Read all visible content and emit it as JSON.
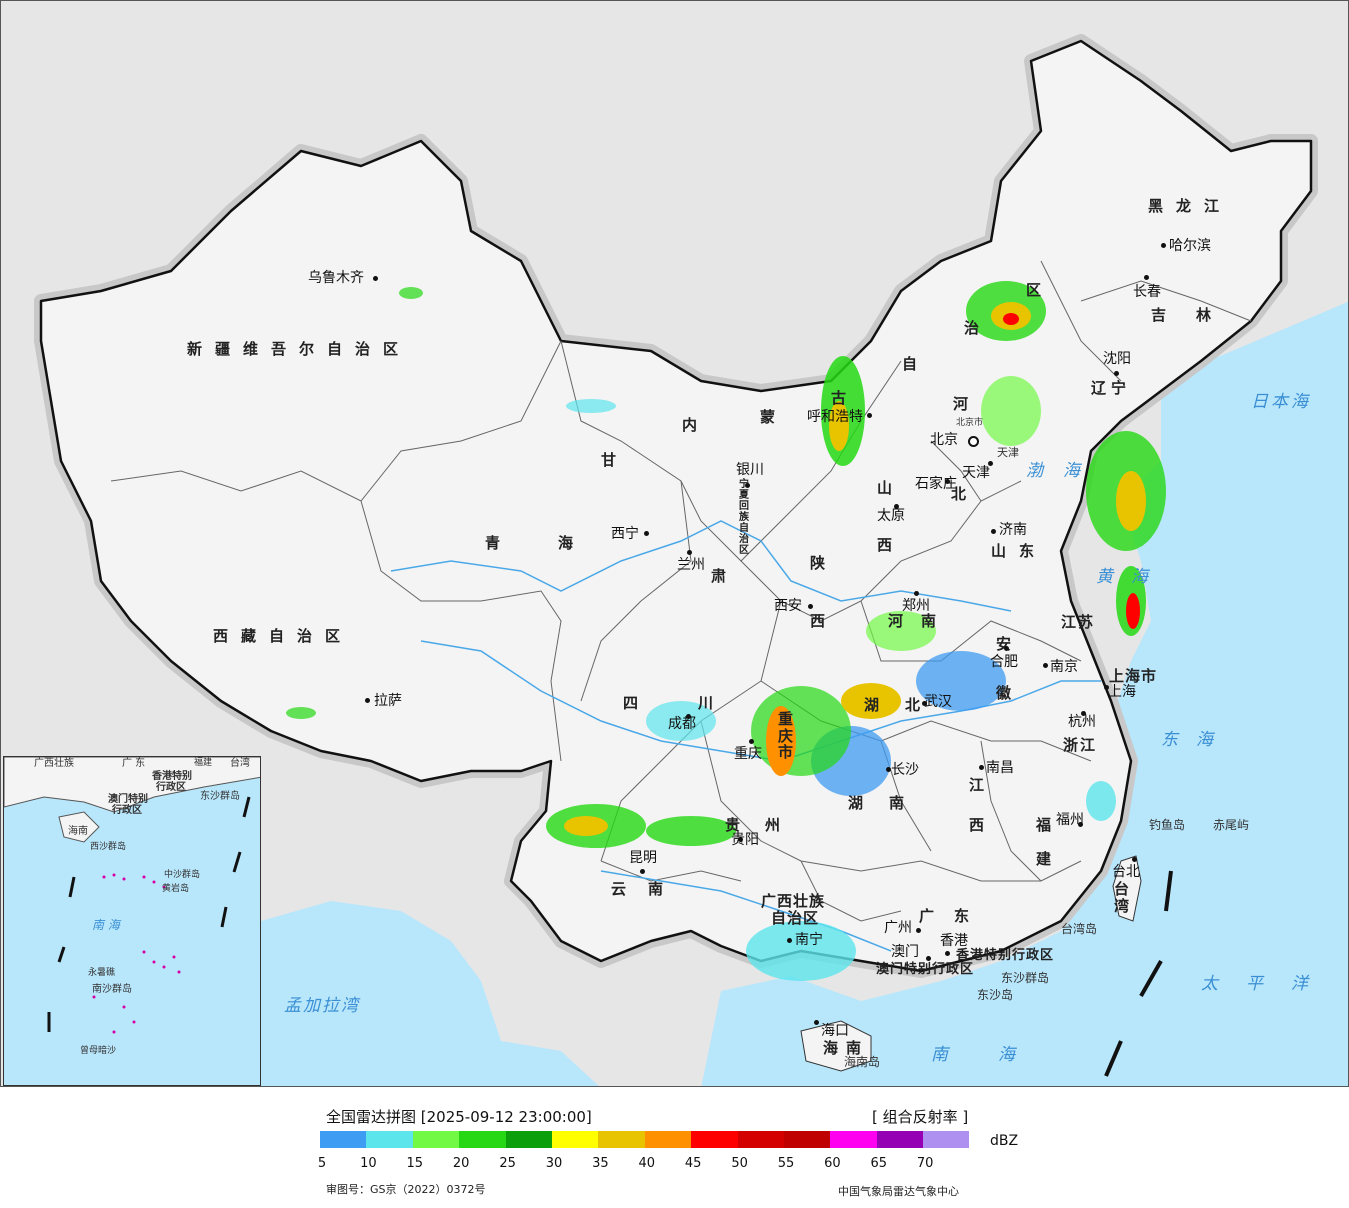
{
  "map": {
    "provinces": [
      {
        "id": "xinjiang",
        "text": "新疆维吾尔自治区"
      },
      {
        "id": "xizang",
        "text": "西藏自治区"
      },
      {
        "id": "qinghai_1",
        "text": "青"
      },
      {
        "id": "qinghai_2",
        "text": "海"
      },
      {
        "id": "gansu_1",
        "text": "甘"
      },
      {
        "id": "gansu_2",
        "text": "肃"
      },
      {
        "id": "neimenggu_1",
        "text": "内"
      },
      {
        "id": "neimenggu_2",
        "text": "蒙"
      },
      {
        "id": "neimenggu_3",
        "text": "古"
      },
      {
        "id": "neimenggu_4",
        "text": "自"
      },
      {
        "id": "neimenggu_5",
        "text": "治"
      },
      {
        "id": "neimenggu_6",
        "text": "区"
      },
      {
        "id": "ningxia",
        "text": "宁夏回族自治区"
      },
      {
        "id": "heilongjiang",
        "text": "黑龙江"
      },
      {
        "id": "jilin",
        "text": "吉林"
      },
      {
        "id": "liaoning_1",
        "text": "辽"
      },
      {
        "id": "liaoning_2",
        "text": "宁"
      },
      {
        "id": "hebei_1",
        "text": "河"
      },
      {
        "id": "hebei_2",
        "text": "北"
      },
      {
        "id": "shanxi_1",
        "text": "山"
      },
      {
        "id": "shanxi_2",
        "text": "西"
      },
      {
        "id": "shandong",
        "text": "山东"
      },
      {
        "id": "shaanxi_1",
        "text": "陕"
      },
      {
        "id": "shaanxi_2",
        "text": "西"
      },
      {
        "id": "henan",
        "text": "河南"
      },
      {
        "id": "jiangsu",
        "text": "江苏"
      },
      {
        "id": "anhui_1",
        "text": "安"
      },
      {
        "id": "anhui_2",
        "text": "徽"
      },
      {
        "id": "hubei",
        "text": "湖北"
      },
      {
        "id": "sichuan",
        "text": "四川"
      },
      {
        "id": "chongqing",
        "text": "重庆市"
      },
      {
        "id": "zhejiang",
        "text": "浙江"
      },
      {
        "id": "jiangxi_1",
        "text": "江"
      },
      {
        "id": "jiangxi_2",
        "text": "西"
      },
      {
        "id": "hunan",
        "text": "湖南"
      },
      {
        "id": "guizhou",
        "text": "州"
      },
      {
        "id": "guizhou_2",
        "text": "贵"
      },
      {
        "id": "fujian_1",
        "text": "福"
      },
      {
        "id": "fujian_2",
        "text": "建"
      },
      {
        "id": "yunnan",
        "text": "云南"
      },
      {
        "id": "guangxi_1",
        "text": "广西壮族"
      },
      {
        "id": "guangxi_2",
        "text": "自治区"
      },
      {
        "id": "guangdong",
        "text": "广东"
      },
      {
        "id": "taiwan",
        "text": "台湾"
      },
      {
        "id": "hainan",
        "text": "海南"
      },
      {
        "id": "shanghai",
        "text": "上海市"
      },
      {
        "id": "tianjin",
        "text": "天津"
      },
      {
        "id": "beijing_s",
        "text": "北京市"
      },
      {
        "id": "hk",
        "text": "香港特别行政区"
      },
      {
        "id": "macao",
        "text": "澳门特别行政区"
      }
    ],
    "cities": [
      {
        "id": "urumqi",
        "text": "乌鲁木齐"
      },
      {
        "id": "lhasa",
        "text": "拉萨"
      },
      {
        "id": "xining",
        "text": "西宁"
      },
      {
        "id": "lanzhou",
        "text": "兰州"
      },
      {
        "id": "yinchuan",
        "text": "银川"
      },
      {
        "id": "huhehaote",
        "text": "呼和浩特"
      },
      {
        "id": "harbin",
        "text": "哈尔滨"
      },
      {
        "id": "changchun",
        "text": "长春"
      },
      {
        "id": "shenyang",
        "text": "沈阳"
      },
      {
        "id": "beijing",
        "text": "北京"
      },
      {
        "id": "tianjin_c",
        "text": "天津"
      },
      {
        "id": "shijiazhuang",
        "text": "石家庄"
      },
      {
        "id": "taiyuan",
        "text": "太原"
      },
      {
        "id": "jinan",
        "text": "济南"
      },
      {
        "id": "zhengzhou",
        "text": "郑州"
      },
      {
        "id": "xian",
        "text": "西安"
      },
      {
        "id": "hefei",
        "text": "合肥"
      },
      {
        "id": "nanjing",
        "text": "南京"
      },
      {
        "id": "shanghai_c",
        "text": "上海"
      },
      {
        "id": "hangzhou",
        "text": "杭州"
      },
      {
        "id": "wuhan",
        "text": "武汉"
      },
      {
        "id": "chengdu",
        "text": "成都"
      },
      {
        "id": "chongqing_c",
        "text": "重庆"
      },
      {
        "id": "changsha",
        "text": "长沙"
      },
      {
        "id": "nanchang",
        "text": "南昌"
      },
      {
        "id": "fuzhou",
        "text": "福州"
      },
      {
        "id": "guiyang",
        "text": "贵阳"
      },
      {
        "id": "kunming",
        "text": "昆明"
      },
      {
        "id": "nanning",
        "text": "南宁"
      },
      {
        "id": "guangzhou",
        "text": "广州"
      },
      {
        "id": "macau_c",
        "text": "澳门"
      },
      {
        "id": "hongkong_c",
        "text": "香港"
      },
      {
        "id": "haikou",
        "text": "海口"
      },
      {
        "id": "taibei",
        "text": "台北"
      }
    ],
    "seas": [
      {
        "id": "ribenhai",
        "text": "日本海"
      },
      {
        "id": "bohai",
        "text": "渤海"
      },
      {
        "id": "huanghai",
        "text": "黄海"
      },
      {
        "id": "donghai",
        "text": "东海"
      },
      {
        "id": "taipingyang",
        "text": "太平洋"
      },
      {
        "id": "nanhai",
        "text": "南海"
      },
      {
        "id": "mengjiala",
        "text": "孟加拉湾"
      }
    ],
    "islands": [
      {
        "id": "diaoyu",
        "text": "钓鱼岛"
      },
      {
        "id": "chiwei",
        "text": "赤尾屿"
      },
      {
        "id": "dongsha_q",
        "text": "东沙群岛"
      },
      {
        "id": "dongsha",
        "text": "东沙岛"
      },
      {
        "id": "taiwan_dao",
        "text": "台湾岛"
      },
      {
        "id": "hainan_dao",
        "text": "海南岛"
      }
    ],
    "inset": {
      "labels": [
        {
          "id": "i_guangxi",
          "text": "广西壮族"
        },
        {
          "id": "i_guangdong",
          "text": "广 东"
        },
        {
          "id": "i_fujian",
          "text": "福建"
        },
        {
          "id": "i_taiwan",
          "text": "台湾"
        },
        {
          "id": "i_hk",
          "text": "香港特别"
        },
        {
          "id": "i_hk2",
          "text": "行政区"
        },
        {
          "id": "i_macao",
          "text": "澳门特别"
        },
        {
          "id": "i_macao2",
          "text": "行政区"
        },
        {
          "id": "i_dongsha",
          "text": "东沙群岛"
        },
        {
          "id": "i_hainan",
          "text": "海南"
        },
        {
          "id": "i_xisha",
          "text": "西沙群岛"
        },
        {
          "id": "i_zhongsha",
          "text": "中沙群岛"
        },
        {
          "id": "i_huangyan",
          "text": "黄岩岛"
        },
        {
          "id": "i_nanhai",
          "text": "南 海"
        },
        {
          "id": "i_yongshu",
          "text": "永暑礁"
        },
        {
          "id": "i_nansha",
          "text": "南沙群岛"
        },
        {
          "id": "i_zengmu",
          "text": "曾母暗沙"
        }
      ]
    }
  },
  "legend": {
    "title": "全国雷达拼图 [2025-09-12 23:00:00]",
    "product": "[ 组合反射率 ]",
    "unit": "dBZ",
    "ticks": [
      "5",
      "10",
      "15",
      "20",
      "25",
      "30",
      "35",
      "40",
      "45",
      "50",
      "55",
      "60",
      "65",
      "70"
    ],
    "colors": [
      "#3f9cf3",
      "#5de5ec",
      "#72f944",
      "#25d813",
      "#0ba00b",
      "#ffff00",
      "#e8c400",
      "#ff9000",
      "#ff0000",
      "#d40000",
      "#c00000",
      "#ff00f0",
      "#9600b4",
      "#ad90f0"
    ],
    "review_no": "审图号：GS京（2022）0372号",
    "source": "中国气象局雷达气象中心"
  }
}
